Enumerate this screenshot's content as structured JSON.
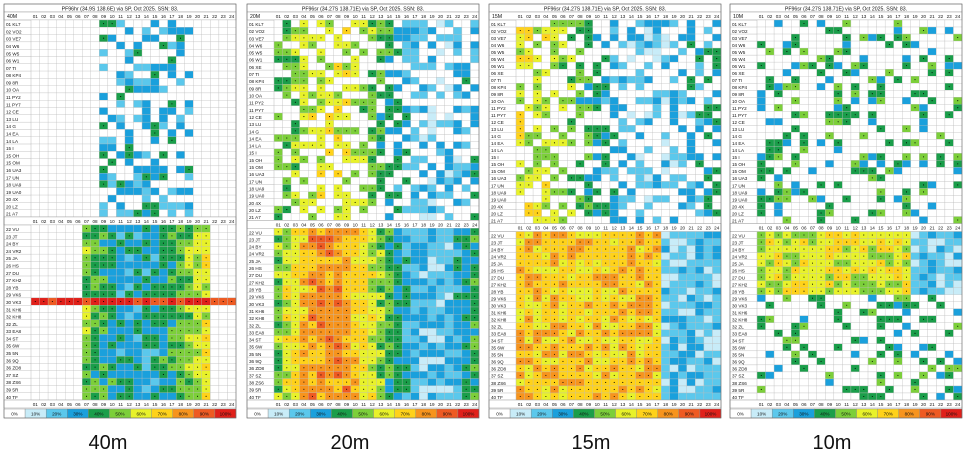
{
  "chart_data": [
    {
      "type": "heatmap",
      "band": "40M",
      "caption": "40m",
      "title": "PF96hr (34.9S 138.6E) via SP, Oct 2025. SSN: 83.",
      "hours": [
        "01",
        "02",
        "03",
        "04",
        "05",
        "06",
        "07",
        "08",
        "09",
        "10",
        "11",
        "12",
        "13",
        "14",
        "15",
        "16",
        "17",
        "18",
        "19",
        "20",
        "21",
        "22",
        "23",
        "24"
      ],
      "regions": [
        "01 KL7",
        "02 VO2",
        "03 VE7",
        "04 W6",
        "05 W5",
        "06 W1",
        "07 TI",
        "08 KP4",
        "09 8R",
        "10 OA",
        "11 PY2",
        "11 PY7",
        "12 CE",
        "13 LU",
        "14 G",
        "14 EA",
        "14 LA",
        "15 I",
        "15 OH",
        "15 OM",
        "16 UA3",
        "17 UN",
        "18 UA9",
        "19 UA0",
        "20 4X",
        "20 LZ",
        "21 A7",
        "22 VU",
        "23 JT",
        "24 BY",
        "24 VR2",
        "25 JA",
        "26 HS",
        "27 DU",
        "27 KH2",
        "28 YB",
        "29 VK6",
        "30 VK3",
        "31 KH6",
        "32 KH8",
        "32 ZL",
        "33 EA8",
        "34 ST",
        "35 6W",
        "35 5N",
        "36 9Q",
        "36 ZD8",
        "37 SZ",
        "38 ZS6",
        "39 5R",
        "40 TF"
      ],
      "legend": [
        "0%",
        "10%",
        "20%",
        "30%",
        "40%",
        "50%",
        "60%",
        "70%",
        "80%",
        "90%",
        "100%"
      ],
      "reliability_by_region": [
        "..................................",
        "........35",
        "......3455",
        "......3455",
        "......24",
        "......3322",
        "",
        "",
        "",
        "",
        "",
        "",
        "......25",
        "",
        "",
        "........",
        "........",
        "........",
        "........",
        "........",
        "........",
        "........",
        "........",
        "........",
        "",
        "",
        "",
        "......3456",
        "......345566",
        "......34566677",
        "......3456677",
        "......3456778",
        "......3456678",
        "......3456788",
        "......3456788",
        "......34567888",
        "......34567999",
        "...999999999999999999",
        "......3456789",
        "......3455677",
        "......345678",
        "......3455",
        "......3455",
        "......3455",
        "......3455",
        "......3455",
        "......34556",
        "......34556",
        "......345",
        "",
        ""
      ]
    },
    {
      "type": "heatmap",
      "band": "20M",
      "caption": "20m",
      "title": "PF96sr (34.27S 138.71E) via SP, Oct 2025. SSN: 83.",
      "hours": [
        "01",
        "02",
        "03",
        "04",
        "05",
        "06",
        "07",
        "08",
        "09",
        "10",
        "11",
        "12",
        "13",
        "14",
        "15",
        "16",
        "17",
        "18",
        "19",
        "20",
        "21",
        "22",
        "23",
        "24"
      ],
      "regions": [
        "01 KL7",
        "02 VO2",
        "03 VE7",
        "04 W6",
        "05 W5",
        "06 W1",
        "06 XE",
        "07 TI",
        "08 KP4",
        "09 8R",
        "10 OA",
        "11 PY2",
        "11 PY7",
        "12 CE",
        "13 LU",
        "14 G",
        "14 EA",
        "14 LA",
        "15 I",
        "15 OH",
        "15 OM",
        "16 UA3",
        "17 UN",
        "18 UA9",
        "19 UA0",
        "20 4X",
        "20 LZ",
        "21 A7",
        "22 VU",
        "23 JT",
        "24 BY",
        "24 VR2",
        "25 JA",
        "26 HS",
        "27 DU",
        "27 KH2",
        "28 YB",
        "29 VK6",
        "30 VK3",
        "31 KH6",
        "32 KH8",
        "32 ZL",
        "33 EA8",
        "34 ST",
        "35 6W",
        "35 5N",
        "36 9Q",
        "36 ZD8",
        "37 SZ",
        "38 ZS6",
        "39 5R",
        "40 TF"
      ],
      "legend": [
        "0%",
        "10%",
        "20%",
        "30%",
        "40%",
        "50%",
        "60%",
        "70%",
        "80%",
        "90%",
        "100%"
      ]
    },
    {
      "type": "heatmap",
      "band": "15M",
      "caption": "15m",
      "title": "PF96sr (34.27S 138.71E) via SP, Oct 2025. SSN: 83.",
      "hours": [
        "01",
        "02",
        "03",
        "04",
        "05",
        "06",
        "07",
        "08",
        "09",
        "10",
        "11",
        "12",
        "13",
        "14",
        "15",
        "16",
        "17",
        "18",
        "19",
        "20",
        "21",
        "22",
        "23",
        "24"
      ],
      "regions": [
        "01 KL7",
        "02 VO2",
        "03 VE7",
        "04 W6",
        "05 W5",
        "05 W4",
        "06 W1",
        "06 XE",
        "07 TI",
        "08 KP4",
        "09 8R",
        "10 OA",
        "11 PY2",
        "11 PY7",
        "12 CE",
        "13 LU",
        "14 G",
        "14 EA",
        "14 LA",
        "15 I",
        "15 OH",
        "15 OM",
        "16 UA3",
        "17 UN",
        "18 UA9",
        "19 UA0",
        "20 4X",
        "20 LZ",
        "21 A7",
        "22 VU",
        "23 JT",
        "24 BY",
        "24 VR2",
        "25 JA",
        "26 HS",
        "27 DU",
        "27 KH2",
        "28 YB",
        "29 VK6",
        "30 VK3",
        "31 KH6",
        "32 KH8",
        "32 ZL",
        "33 EA8",
        "34 ST",
        "35 6W",
        "35 5N",
        "36 9Q",
        "36 ZD8",
        "37 SZ",
        "38 ZS6",
        "39 5R",
        "40 TF"
      ],
      "legend": [
        "0%",
        "10%",
        "20%",
        "30%",
        "40%",
        "50%",
        "60%",
        "70%",
        "80%",
        "90%",
        "100%"
      ]
    },
    {
      "type": "heatmap",
      "band": "10M",
      "caption": "10m",
      "title": "PF96sr (34.27S 138.71E) via SP, Oct 2025. SSN: 83.",
      "hours": [
        "01",
        "02",
        "03",
        "04",
        "05",
        "06",
        "07",
        "08",
        "09",
        "10",
        "11",
        "12",
        "13",
        "14",
        "15",
        "16",
        "17",
        "18",
        "19",
        "20",
        "21",
        "22",
        "23",
        "24"
      ],
      "regions": [
        "01 KL7",
        "02 VO2",
        "03 VE7",
        "04 W6",
        "05 W5",
        "05 W4",
        "06 W1",
        "06 XE",
        "07 TI",
        "08 KP4",
        "09 8R",
        "10 OA",
        "11 PY2",
        "11 PY7",
        "12 CE",
        "13 LU",
        "14 G",
        "14 EA",
        "14 LA",
        "15 I",
        "15 OH",
        "15 OM",
        "16 UA3",
        "17 UN",
        "18 UA9",
        "19 UA0",
        "20 4X",
        "20 LZ",
        "21 A7",
        "22 VU",
        "23 JT",
        "24 BY",
        "24 VR2",
        "25 JA",
        "26 HS",
        "27 DU",
        "27 KH2",
        "28 YB",
        "29 VK6",
        "30 VK3",
        "31 KH6",
        "32 KH8",
        "32 ZL",
        "33 EA8",
        "34 ST",
        "35 6W",
        "35 5N",
        "36 9Q",
        "36 ZD8",
        "37 SZ",
        "38 ZS6",
        "39 5R",
        "40 TF"
      ],
      "legend": [
        "0%",
        "10%",
        "20%",
        "30%",
        "40%",
        "50%",
        "60%",
        "70%",
        "80%",
        "90%",
        "100%"
      ]
    }
  ],
  "palette": [
    "#ffffff",
    "#c8ecf8",
    "#5bc8ec",
    "#1aa0dc",
    "#1a9e4a",
    "#7ccf3a",
    "#e8f22a",
    "#ffd21a",
    "#f7941d",
    "#ee5a22",
    "#e0201a"
  ]
}
